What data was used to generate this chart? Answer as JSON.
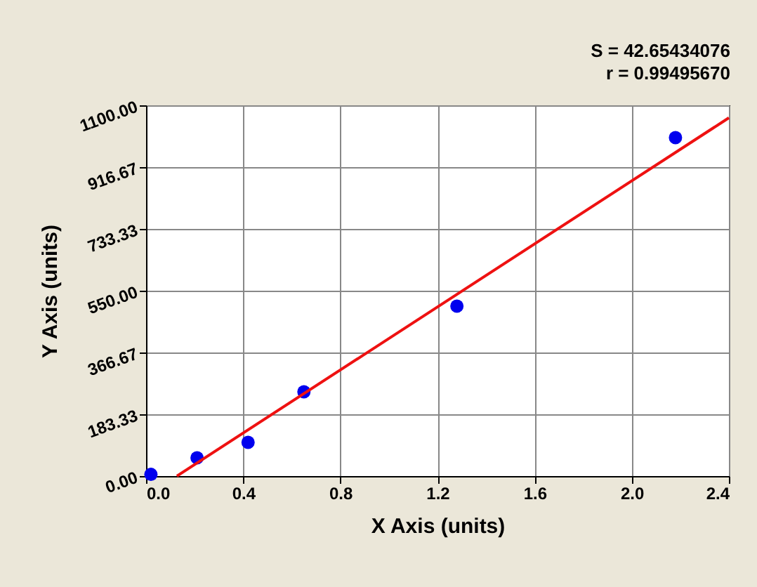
{
  "chart_data": {
    "type": "scatter",
    "xlabel": "X Axis (units)",
    "ylabel": "Y Axis (units)",
    "annotations": [
      "S = 42.65434076",
      "r = 0.99495670"
    ],
    "xlim": [
      0,
      2.4
    ],
    "ylim": [
      0,
      1100
    ],
    "xticks": [
      {
        "value": 0,
        "label": "0.0"
      },
      {
        "value": 0.4,
        "label": "0.4"
      },
      {
        "value": 0.8,
        "label": "0.8"
      },
      {
        "value": 1.2,
        "label": "1.2"
      },
      {
        "value": 1.6,
        "label": "1.6"
      },
      {
        "value": 2.0,
        "label": "2.0"
      },
      {
        "value": 2.4,
        "label": "2.4"
      }
    ],
    "yticks": [
      {
        "value": 0,
        "label": "0.00"
      },
      {
        "value": 183.33,
        "label": "183.33"
      },
      {
        "value": 366.67,
        "label": "366.67"
      },
      {
        "value": 550,
        "label": "550.00"
      },
      {
        "value": 733.33,
        "label": "733.33"
      },
      {
        "value": 916.67,
        "label": "916.67"
      },
      {
        "value": 1100,
        "label": "1100.00"
      }
    ],
    "grid": true,
    "series": [
      {
        "color": "#0000ee",
        "marker": "circle",
        "x": [
          0.02,
          0.21,
          0.42,
          0.65,
          1.28,
          2.18
        ],
        "values": [
          5,
          54,
          100,
          250,
          504,
          1004
        ]
      },
      {
        "type": "line",
        "color": "#ee1111",
        "marker": "none",
        "line_style": "solid",
        "x": [
          0.127,
          2.4
        ],
        "values": [
          0,
          1063
        ]
      }
    ]
  }
}
